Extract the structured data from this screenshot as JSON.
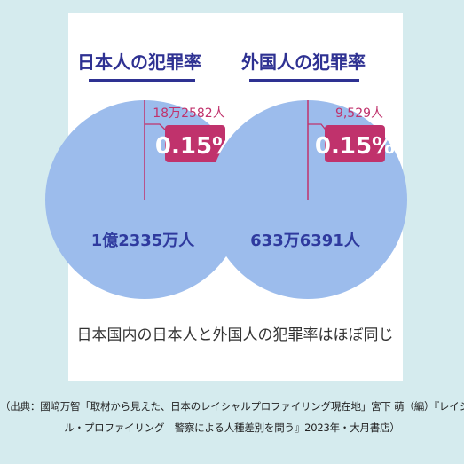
{
  "colors": {
    "background": "#d5ebee",
    "card": "#ffffff",
    "pie_fill": "#9cbcec",
    "slice": "#c0326c",
    "title_text": "#2e3192",
    "title_underline": "#2e3192",
    "total_label": "#2f3a9e",
    "text": "#333333"
  },
  "chart_data": [
    {
      "type": "pie",
      "title": "日本人の犯罪率",
      "slices": [
        {
          "label": "18万2582人",
          "percent": 0.15
        },
        {
          "label": "1億2335万人",
          "percent": 99.85
        }
      ],
      "callout": "0.15%"
    },
    {
      "type": "pie",
      "title": "外国人の犯罪率",
      "slices": [
        {
          "label": "9,529人",
          "percent": 0.15
        },
        {
          "label": "633万6391人",
          "percent": 99.85
        }
      ],
      "callout": "0.15%"
    }
  ],
  "summary": "日本国内の日本人と外国人の犯罪率はほぼ同じ",
  "caption": {
    "line1": "（出典：國﨑万智「取材から見えた、日本のレイシャルプロファイリング現在地」宮下 萌（編）『レイシャ",
    "line2": "ル・プロファイリング　警察による人種差別を問う』2023年・大月書店）"
  }
}
